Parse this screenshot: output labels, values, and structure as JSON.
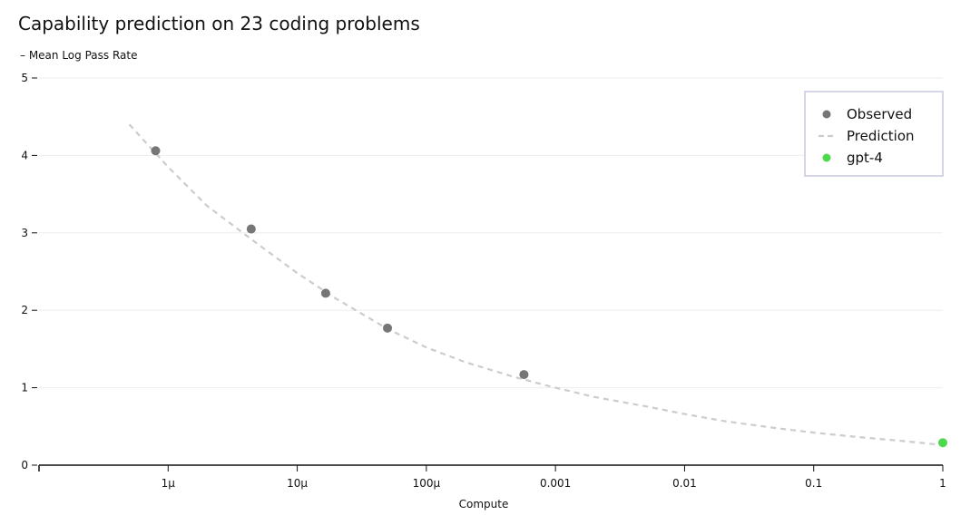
{
  "chart_data": {
    "type": "scatter",
    "title": "Capability prediction on 23 coding problems",
    "ylabel": "– Mean Log Pass Rate",
    "xlabel": "Compute",
    "xscale": "log",
    "xlim": [
      1e-07,
      1
    ],
    "ylim": [
      0,
      5
    ],
    "x_ticks": [
      {
        "value": 1e-06,
        "label": "1μ"
      },
      {
        "value": 1e-05,
        "label": "10μ"
      },
      {
        "value": 0.0001,
        "label": "100μ"
      },
      {
        "value": 0.001,
        "label": "0.001"
      },
      {
        "value": 0.01,
        "label": "0.01"
      },
      {
        "value": 0.1,
        "label": "0.1"
      },
      {
        "value": 1,
        "label": "1"
      }
    ],
    "y_ticks": [
      {
        "value": 0,
        "label": "0"
      },
      {
        "value": 1,
        "label": "1"
      },
      {
        "value": 2,
        "label": "2"
      },
      {
        "value": 3,
        "label": "3"
      },
      {
        "value": 4,
        "label": "4"
      },
      {
        "value": 5,
        "label": "5"
      }
    ],
    "grid": true,
    "legend_position": "top-right",
    "series": [
      {
        "name": "Observed",
        "kind": "points",
        "color": "#767676",
        "points": [
          {
            "x": 8e-07,
            "y": 4.06
          },
          {
            "x": 4.4e-06,
            "y": 3.05
          },
          {
            "x": 1.66e-05,
            "y": 2.22
          },
          {
            "x": 5e-05,
            "y": 1.77
          },
          {
            "x": 0.00057,
            "y": 1.17
          }
        ]
      },
      {
        "name": "Prediction",
        "kind": "dashed-line",
        "color": "#cccccc",
        "points": [
          {
            "x": 5e-07,
            "y": 4.4
          },
          {
            "x": 1e-06,
            "y": 3.85
          },
          {
            "x": 2e-06,
            "y": 3.35
          },
          {
            "x": 5e-06,
            "y": 2.85
          },
          {
            "x": 1e-05,
            "y": 2.48
          },
          {
            "x": 2e-05,
            "y": 2.15
          },
          {
            "x": 5e-05,
            "y": 1.76
          },
          {
            "x": 0.0001,
            "y": 1.52
          },
          {
            "x": 0.0002,
            "y": 1.33
          },
          {
            "x": 0.0005,
            "y": 1.13
          },
          {
            "x": 0.001,
            "y": 1.0
          },
          {
            "x": 0.002,
            "y": 0.88
          },
          {
            "x": 0.005,
            "y": 0.76
          },
          {
            "x": 0.01,
            "y": 0.66
          },
          {
            "x": 0.02,
            "y": 0.57
          },
          {
            "x": 0.05,
            "y": 0.48
          },
          {
            "x": 0.1,
            "y": 0.42
          },
          {
            "x": 0.2,
            "y": 0.37
          },
          {
            "x": 0.5,
            "y": 0.31
          },
          {
            "x": 1,
            "y": 0.26
          }
        ]
      },
      {
        "name": "gpt-4",
        "kind": "points",
        "color": "#4cd94c",
        "points": [
          {
            "x": 1,
            "y": 0.29
          }
        ]
      }
    ],
    "legend": [
      {
        "label": "Observed",
        "marker": "dot",
        "color": "#767676"
      },
      {
        "label": "Prediction",
        "marker": "dash",
        "color": "#cccccc"
      },
      {
        "label": "gpt-4",
        "marker": "dot",
        "color": "#4cd94c"
      }
    ],
    "colors": {
      "axis": "#111111",
      "grid": "#eeeeee",
      "legend_border": "#c7c7e0"
    }
  }
}
